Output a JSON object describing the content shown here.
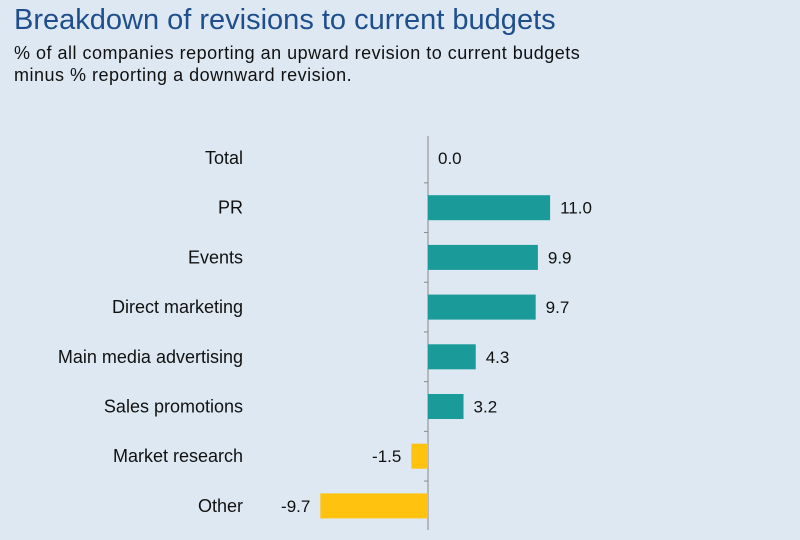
{
  "title": "Breakdown of revisions to current budgets",
  "subtitle": "% of all companies reporting an upward revision to current budgets\nminus % reporting a downward revision.",
  "colors": {
    "positive": "#1a9a98",
    "negative": "#ffc20e",
    "axis": "#888888",
    "background": "#dde8f2"
  },
  "chart_data": {
    "type": "bar",
    "orientation": "horizontal",
    "categories": [
      "Total",
      "PR",
      "Events",
      "Direct marketing",
      "Main media advertising",
      "Sales promotions",
      "Market research",
      "Other"
    ],
    "values": [
      0.0,
      11.0,
      9.9,
      9.7,
      4.3,
      3.2,
      -1.5,
      -9.7
    ],
    "value_labels": [
      "0.0",
      "11.0",
      "9.9",
      "9.7",
      "4.3",
      "3.2",
      "-1.5",
      "-9.7"
    ],
    "xlim": [
      -10,
      20
    ],
    "grid": false,
    "legend": "none"
  }
}
